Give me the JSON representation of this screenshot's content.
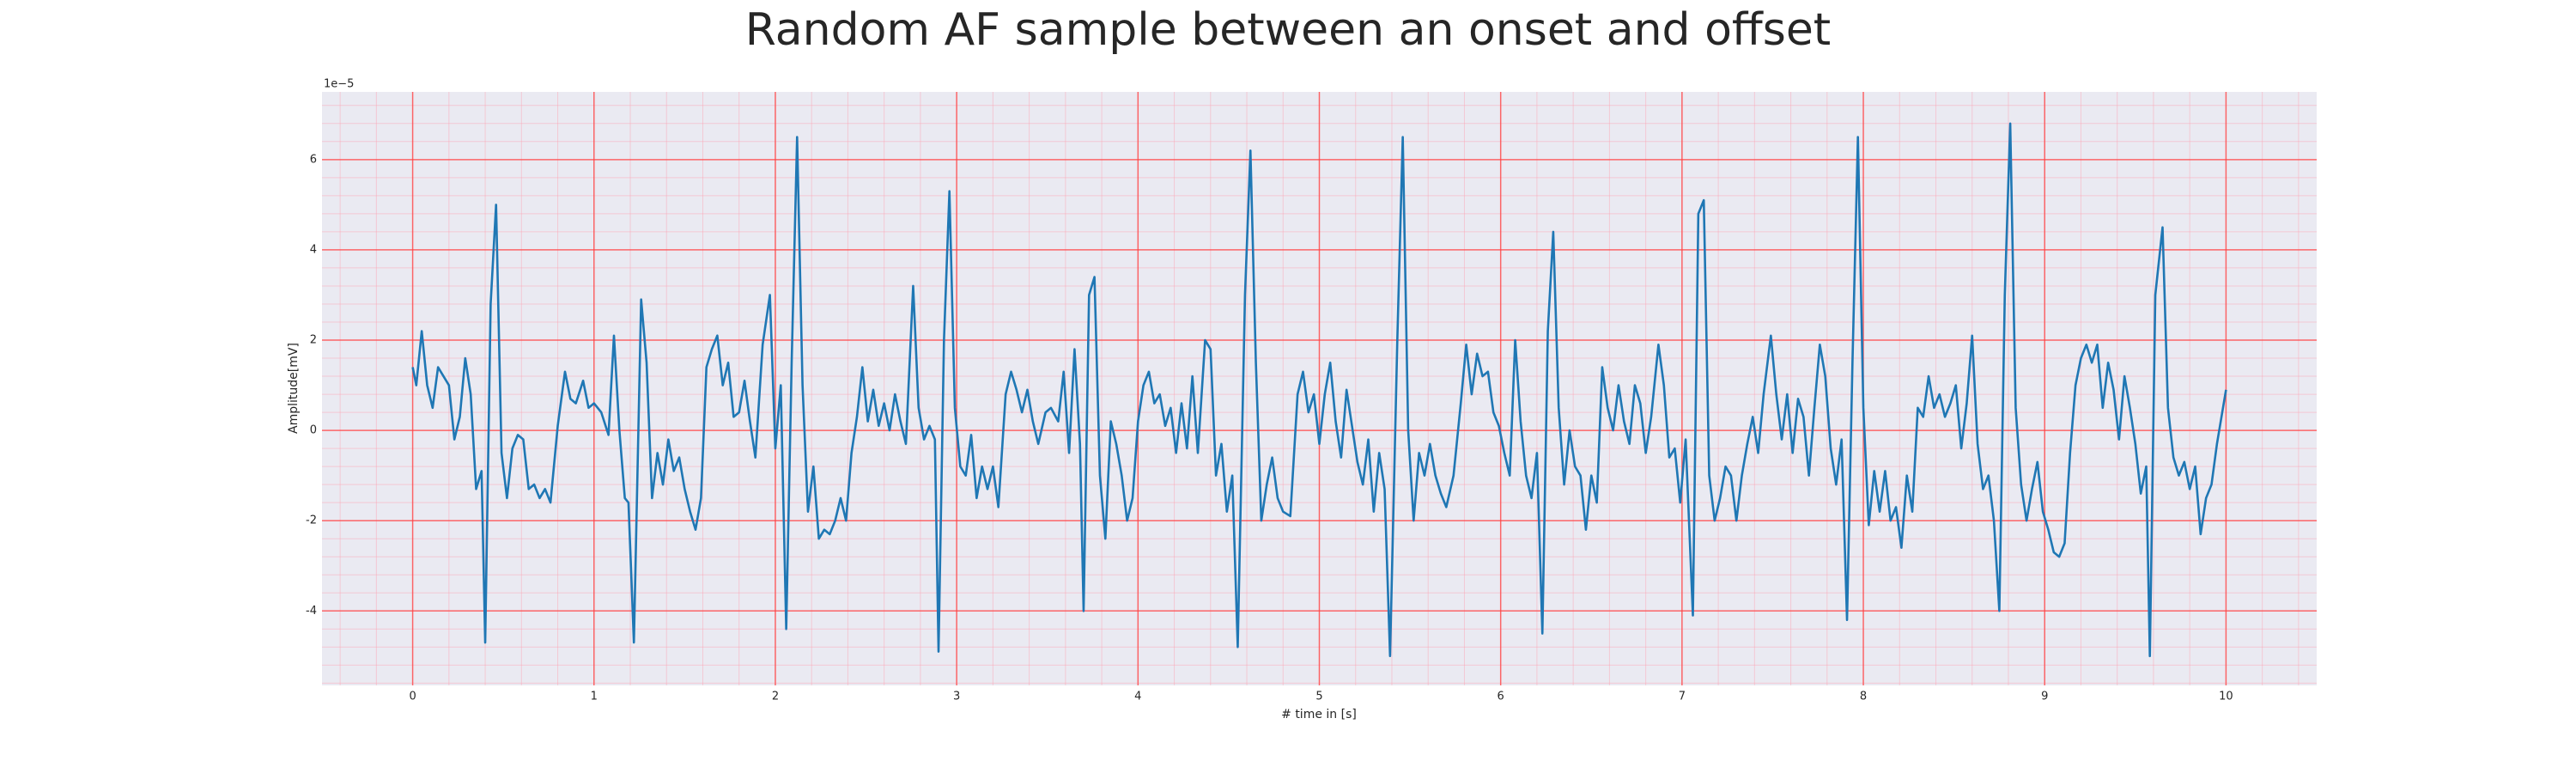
{
  "chart_data": {
    "type": "line",
    "title": "Random AF sample between an onset and offset",
    "xlabel": "# time in [s]",
    "ylabel": "Amplitude[mV]",
    "offset_text": "1e−5",
    "color": "#1f77b4",
    "xlim": [
      -0.5,
      10.5
    ],
    "ylim": [
      -5.65,
      7.5
    ],
    "xticks": [
      0,
      1,
      2,
      3,
      4,
      5,
      6,
      7,
      8,
      9,
      10
    ],
    "yticks": [
      -4,
      -2,
      0,
      2,
      4,
      6
    ],
    "grid": true,
    "x_minor_step": 0.2,
    "y_minor_step": 0.4,
    "x": [
      0.0,
      0.02,
      0.05,
      0.08,
      0.11,
      0.14,
      0.17,
      0.2,
      0.23,
      0.26,
      0.29,
      0.32,
      0.35,
      0.38,
      0.4,
      0.43,
      0.46,
      0.49,
      0.52,
      0.55,
      0.58,
      0.61,
      0.64,
      0.67,
      0.7,
      0.73,
      0.76,
      0.8,
      0.84,
      0.87,
      0.9,
      0.94,
      0.97,
      1.0,
      1.04,
      1.08,
      1.11,
      1.14,
      1.17,
      1.19,
      1.22,
      1.26,
      1.29,
      1.32,
      1.35,
      1.38,
      1.41,
      1.44,
      1.47,
      1.5,
      1.53,
      1.56,
      1.59,
      1.62,
      1.65,
      1.68,
      1.71,
      1.74,
      1.77,
      1.8,
      1.83,
      1.86,
      1.89,
      1.93,
      1.97,
      2.0,
      2.03,
      2.06,
      2.09,
      2.12,
      2.15,
      2.18,
      2.21,
      2.24,
      2.27,
      2.3,
      2.33,
      2.36,
      2.39,
      2.42,
      2.45,
      2.48,
      2.51,
      2.54,
      2.57,
      2.6,
      2.63,
      2.66,
      2.69,
      2.72,
      2.76,
      2.79,
      2.82,
      2.85,
      2.88,
      2.9,
      2.93,
      2.96,
      2.99,
      3.02,
      3.05,
      3.08,
      3.11,
      3.14,
      3.17,
      3.2,
      3.23,
      3.27,
      3.3,
      3.33,
      3.36,
      3.39,
      3.42,
      3.45,
      3.49,
      3.52,
      3.56,
      3.59,
      3.62,
      3.65,
      3.68,
      3.7,
      3.73,
      3.76,
      3.79,
      3.82,
      3.85,
      3.88,
      3.91,
      3.94,
      3.97,
      4.0,
      4.03,
      4.06,
      4.09,
      4.12,
      4.15,
      4.18,
      4.21,
      4.24,
      4.27,
      4.3,
      4.33,
      4.37,
      4.4,
      4.43,
      4.46,
      4.49,
      4.52,
      4.55,
      4.59,
      4.62,
      4.65,
      4.68,
      4.71,
      4.74,
      4.77,
      4.8,
      4.84,
      4.88,
      4.91,
      4.94,
      4.97,
      5.0,
      5.03,
      5.06,
      5.09,
      5.12,
      5.15,
      5.18,
      5.21,
      5.24,
      5.27,
      5.3,
      5.33,
      5.36,
      5.39,
      5.43,
      5.46,
      5.49,
      5.52,
      5.55,
      5.58,
      5.61,
      5.64,
      5.67,
      5.7,
      5.74,
      5.78,
      5.81,
      5.84,
      5.87,
      5.9,
      5.93,
      5.96,
      5.99,
      6.02,
      6.05,
      6.08,
      6.11,
      6.14,
      6.17,
      6.2,
      6.23,
      6.26,
      6.29,
      6.32,
      6.35,
      6.38,
      6.41,
      6.44,
      6.47,
      6.5,
      6.53,
      6.56,
      6.59,
      6.62,
      6.65,
      6.68,
      6.71,
      6.74,
      6.77,
      6.8,
      6.83,
      6.87,
      6.9,
      6.93,
      6.96,
      6.99,
      7.02,
      7.06,
      7.09,
      7.12,
      7.15,
      7.18,
      7.21,
      7.24,
      7.27,
      7.3,
      7.33,
      7.36,
      7.39,
      7.42,
      7.45,
      7.49,
      7.52,
      7.55,
      7.58,
      7.61,
      7.64,
      7.67,
      7.7,
      7.73,
      7.76,
      7.79,
      7.82,
      7.85,
      7.88,
      7.91,
      7.94,
      7.97,
      8.0,
      8.03,
      8.06,
      8.09,
      8.12,
      8.15,
      8.18,
      8.21,
      8.24,
      8.27,
      8.3,
      8.33,
      8.36,
      8.39,
      8.42,
      8.45,
      8.48,
      8.51,
      8.54,
      8.57,
      8.6,
      8.63,
      8.66,
      8.69,
      8.72,
      8.75,
      8.78,
      8.81,
      8.84,
      8.87,
      8.9,
      8.93,
      8.96,
      8.99,
      9.02,
      9.05,
      9.08,
      9.11,
      9.14,
      9.17,
      9.2,
      9.23,
      9.26,
      9.29,
      9.32,
      9.35,
      9.38,
      9.41,
      9.44,
      9.47,
      9.5,
      9.53,
      9.56,
      9.58,
      9.61,
      9.65,
      9.68,
      9.71,
      9.74,
      9.77,
      9.8,
      9.83,
      9.86,
      9.89,
      9.92,
      9.95,
      10.0
    ],
    "values": [
      1.4,
      1.0,
      2.2,
      1.0,
      0.5,
      1.4,
      1.2,
      1.0,
      -0.2,
      0.3,
      1.6,
      0.8,
      -1.3,
      -0.9,
      -4.7,
      2.8,
      5.0,
      -0.5,
      -1.5,
      -0.4,
      -0.1,
      -0.2,
      -1.3,
      -1.2,
      -1.5,
      -1.3,
      -1.6,
      0.1,
      1.3,
      0.7,
      0.6,
      1.1,
      0.5,
      0.6,
      0.4,
      -0.1,
      2.1,
      0.0,
      -1.5,
      -1.6,
      -4.7,
      2.9,
      1.5,
      -1.5,
      -0.5,
      -1.2,
      -0.2,
      -0.9,
      -0.6,
      -1.3,
      -1.8,
      -2.2,
      -1.5,
      1.4,
      1.8,
      2.1,
      1.0,
      1.5,
      0.3,
      0.4,
      1.1,
      0.2,
      -0.6,
      1.9,
      3.0,
      -0.4,
      1.0,
      -4.4,
      1.5,
      6.5,
      1.0,
      -1.8,
      -0.8,
      -2.4,
      -2.2,
      -2.3,
      -2.0,
      -1.5,
      -2.0,
      -0.5,
      0.3,
      1.4,
      0.2,
      0.9,
      0.1,
      0.6,
      0.0,
      0.8,
      0.2,
      -0.3,
      3.2,
      0.5,
      -0.2,
      0.1,
      -0.2,
      -4.9,
      2.0,
      5.3,
      0.5,
      -0.8,
      -1.0,
      -0.1,
      -1.5,
      -0.8,
      -1.3,
      -0.8,
      -1.7,
      0.8,
      1.3,
      0.9,
      0.4,
      0.9,
      0.2,
      -0.3,
      0.4,
      0.5,
      0.2,
      1.3,
      -0.5,
      1.8,
      -0.3,
      -4.0,
      3.0,
      3.4,
      -1.0,
      -2.4,
      0.2,
      -0.3,
      -1.0,
      -2.0,
      -1.5,
      0.2,
      1.0,
      1.3,
      0.6,
      0.8,
      0.1,
      0.5,
      -0.5,
      0.6,
      -0.4,
      1.2,
      -0.5,
      2.0,
      1.8,
      -1.0,
      -0.3,
      -1.8,
      -1.0,
      -4.8,
      3.0,
      6.2,
      1.5,
      -2.0,
      -1.2,
      -0.6,
      -1.5,
      -1.8,
      -1.9,
      0.8,
      1.3,
      0.4,
      0.8,
      -0.3,
      0.8,
      1.5,
      0.2,
      -0.6,
      0.9,
      0.1,
      -0.7,
      -1.2,
      -0.2,
      -1.8,
      -0.5,
      -1.3,
      -5.0,
      2.0,
      6.5,
      0.0,
      -2.0,
      -0.5,
      -1.0,
      -0.3,
      -1.0,
      -1.4,
      -1.7,
      -1.0,
      0.6,
      1.9,
      0.8,
      1.7,
      1.2,
      1.3,
      0.4,
      0.1,
      -0.5,
      -1.0,
      2.0,
      0.2,
      -1.0,
      -1.5,
      -0.5,
      -4.5,
      2.2,
      4.4,
      0.5,
      -1.2,
      0.0,
      -0.8,
      -1.0,
      -2.2,
      -1.0,
      -1.6,
      1.4,
      0.5,
      0.0,
      1.0,
      0.2,
      -0.3,
      1.0,
      0.6,
      -0.5,
      0.3,
      1.9,
      1.0,
      -0.6,
      -0.4,
      -1.6,
      -0.2,
      -4.1,
      4.8,
      5.1,
      -1.0,
      -2.0,
      -1.5,
      -0.8,
      -1.0,
      -2.0,
      -1.0,
      -0.3,
      0.3,
      -0.5,
      0.8,
      2.1,
      0.8,
      -0.2,
      0.8,
      -0.5,
      0.7,
      0.3,
      -1.0,
      0.5,
      1.9,
      1.2,
      -0.4,
      -1.2,
      -0.2,
      -4.2,
      1.5,
      6.5,
      0.5,
      -2.1,
      -0.9,
      -1.8,
      -0.9,
      -2.0,
      -1.7,
      -2.6,
      -1.0,
      -1.8,
      0.5,
      0.3,
      1.2,
      0.5,
      0.8,
      0.3,
      0.6,
      1.0,
      -0.4,
      0.6,
      2.1,
      -0.3,
      -1.3,
      -1.0,
      -2.0,
      -4.0,
      3.0,
      6.8,
      0.5,
      -1.2,
      -2.0,
      -1.3,
      -0.7,
      -1.8,
      -2.2,
      -2.7,
      -2.8,
      -2.5,
      -0.5,
      1.0,
      1.6,
      1.9,
      1.5,
      1.9,
      0.5,
      1.5,
      0.9,
      -0.2,
      1.2,
      0.5,
      -0.3,
      -1.4,
      -0.8,
      -5.0,
      3.0,
      4.5,
      0.5,
      -0.6,
      -1.0,
      -0.7,
      -1.3,
      -0.8,
      -2.3,
      -1.5,
      -1.2,
      -0.3,
      0.9
    ]
  }
}
